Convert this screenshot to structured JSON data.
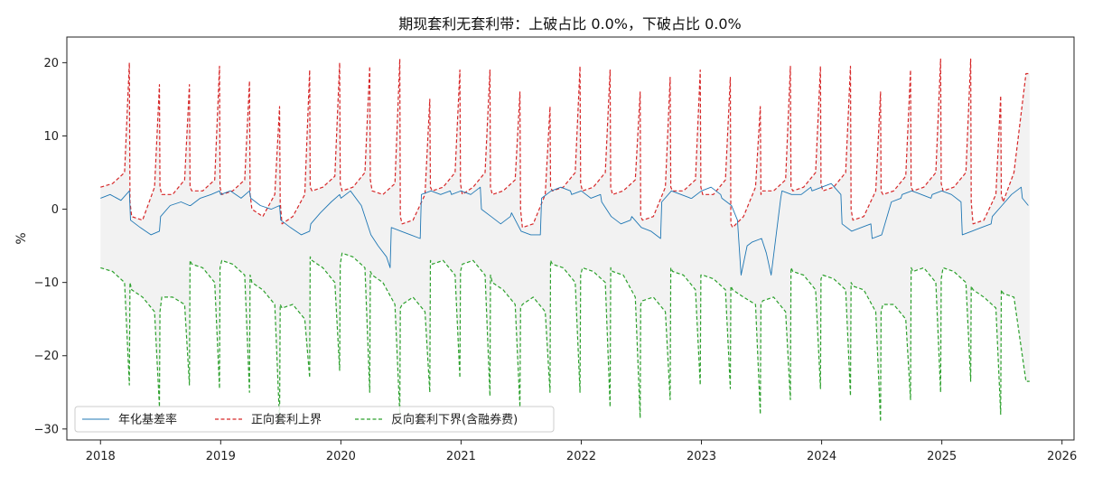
{
  "chart_data": {
    "type": "line",
    "title": "期现套利无套利带：上破占比 0.0%，下破占比 0.0%",
    "xlabel": "",
    "ylabel": "%",
    "xlim": [
      2017.72,
      2026.1
    ],
    "ylim": [
      -31.5,
      23.5
    ],
    "x_ticks": [
      2018,
      2019,
      2020,
      2021,
      2022,
      2023,
      2024,
      2025,
      2026
    ],
    "x_tick_labels": [
      "2018",
      "2019",
      "2020",
      "2021",
      "2022",
      "2023",
      "2024",
      "2025",
      "2026"
    ],
    "y_ticks": [
      -30,
      -20,
      -10,
      0,
      10,
      20
    ],
    "y_tick_labels": [
      "−30",
      "−20",
      "−10",
      "0",
      "10",
      "20"
    ],
    "grid": false,
    "legend_position": "lower-left",
    "band_fill_color": "#f2f2f2",
    "series": [
      {
        "name": "年化基差率",
        "color": "#1f77b4",
        "style": "solid",
        "x": [
          2018.0,
          2018.08,
          2018.17,
          2018.24,
          2018.25,
          2018.33,
          2018.42,
          2018.49,
          2018.5,
          2018.58,
          2018.67,
          2018.74,
          2018.75,
          2018.83,
          2018.92,
          2018.99,
          2019.0,
          2019.08,
          2019.17,
          2019.24,
          2019.25,
          2019.33,
          2019.42,
          2019.49,
          2019.5,
          2019.58,
          2019.67,
          2019.74,
          2019.75,
          2019.83,
          2019.92,
          2019.99,
          2020.0,
          2020.08,
          2020.17,
          2020.24,
          2020.25,
          2020.31,
          2020.38,
          2020.41,
          2020.42,
          2020.5,
          2020.58,
          2020.66,
          2020.67,
          2020.75,
          2020.83,
          2020.91,
          2020.92,
          2021.0,
          2021.08,
          2021.16,
          2021.17,
          2021.25,
          2021.33,
          2021.41,
          2021.42,
          2021.5,
          2021.58,
          2021.66,
          2021.67,
          2021.75,
          2021.83,
          2021.91,
          2021.92,
          2022.0,
          2022.08,
          2022.16,
          2022.17,
          2022.25,
          2022.33,
          2022.41,
          2022.42,
          2022.5,
          2022.58,
          2022.66,
          2022.67,
          2022.75,
          2022.83,
          2022.91,
          2022.92,
          2023.0,
          2023.08,
          2023.16,
          2023.17,
          2023.25,
          2023.3,
          2023.33,
          2023.38,
          2023.42,
          2023.5,
          2023.54,
          2023.58,
          2023.66,
          2023.67,
          2023.75,
          2023.83,
          2023.91,
          2023.92,
          2024.0,
          2024.08,
          2024.16,
          2024.17,
          2024.25,
          2024.33,
          2024.41,
          2024.42,
          2024.5,
          2024.58,
          2024.66,
          2024.67,
          2024.75,
          2024.83,
          2024.91,
          2024.92,
          2025.0,
          2025.08,
          2025.16,
          2025.17,
          2025.25,
          2025.33,
          2025.41,
          2025.42,
          2025.5,
          2025.58,
          2025.66,
          2025.67,
          2025.72
        ],
        "y": [
          1.5,
          2.0,
          1.2,
          2.5,
          -1.5,
          -2.5,
          -3.5,
          -3.0,
          -1.0,
          0.5,
          1.0,
          0.5,
          0.5,
          1.5,
          2.0,
          2.5,
          2.0,
          2.5,
          1.5,
          2.5,
          1.5,
          0.5,
          0.0,
          0.5,
          -1.5,
          -2.5,
          -3.5,
          -3.0,
          -2.0,
          -0.5,
          1.0,
          2.0,
          1.5,
          2.5,
          0.5,
          -3.0,
          -3.5,
          -5.0,
          -6.5,
          -8.0,
          -2.5,
          -3.0,
          -3.5,
          -4.0,
          2.0,
          2.5,
          2.0,
          2.5,
          2.0,
          2.5,
          2.0,
          3.0,
          0.0,
          -1.0,
          -2.0,
          -1.0,
          -0.5,
          -3.0,
          -3.5,
          -3.5,
          1.5,
          2.5,
          3.0,
          2.5,
          2.0,
          2.5,
          1.5,
          2.0,
          1.0,
          -1.0,
          -2.0,
          -1.5,
          -1.0,
          -2.5,
          -3.0,
          -4.0,
          1.0,
          2.5,
          2.0,
          1.5,
          1.5,
          2.5,
          3.0,
          2.0,
          1.5,
          0.5,
          -1.5,
          -9.0,
          -5.0,
          -4.5,
          -4.0,
          -6.0,
          -9.0,
          1.5,
          2.5,
          2.0,
          2.0,
          3.0,
          2.5,
          3.0,
          3.5,
          2.0,
          -2.0,
          -3.0,
          -2.5,
          -2.0,
          -4.0,
          -3.5,
          1.0,
          1.5,
          2.0,
          2.5,
          2.0,
          1.5,
          2.0,
          2.5,
          2.0,
          1.0,
          -3.5,
          -3.0,
          -2.5,
          -2.0,
          -1.0,
          0.5,
          2.0,
          3.0,
          1.5,
          0.5
        ]
      },
      {
        "name": "正向套利上界",
        "color": "#d62728",
        "style": "dashed",
        "x": [
          2018.0,
          2018.1,
          2018.2,
          2018.24,
          2018.245,
          2018.26,
          2018.35,
          2018.45,
          2018.49,
          2018.495,
          2018.51,
          2018.6,
          2018.7,
          2018.74,
          2018.745,
          2018.76,
          2018.85,
          2018.95,
          2018.99,
          2018.995,
          2019.01,
          2019.1,
          2019.2,
          2019.24,
          2019.245,
          2019.26,
          2019.35,
          2019.45,
          2019.49,
          2019.495,
          2019.51,
          2019.6,
          2019.7,
          2019.74,
          2019.745,
          2019.76,
          2019.85,
          2019.95,
          2019.99,
          2019.995,
          2020.01,
          2020.1,
          2020.2,
          2020.24,
          2020.245,
          2020.26,
          2020.35,
          2020.45,
          2020.49,
          2020.495,
          2020.51,
          2020.6,
          2020.7,
          2020.74,
          2020.745,
          2020.76,
          2020.85,
          2020.95,
          2020.99,
          2020.995,
          2021.01,
          2021.1,
          2021.2,
          2021.24,
          2021.245,
          2021.26,
          2021.35,
          2021.45,
          2021.49,
          2021.495,
          2021.51,
          2021.6,
          2021.7,
          2021.74,
          2021.745,
          2021.76,
          2021.85,
          2021.95,
          2021.99,
          2021.995,
          2022.01,
          2022.1,
          2022.2,
          2022.24,
          2022.245,
          2022.26,
          2022.35,
          2022.45,
          2022.49,
          2022.495,
          2022.51,
          2022.6,
          2022.7,
          2022.74,
          2022.745,
          2022.76,
          2022.85,
          2022.95,
          2022.99,
          2022.995,
          2023.01,
          2023.1,
          2023.2,
          2023.24,
          2023.245,
          2023.26,
          2023.35,
          2023.45,
          2023.49,
          2023.495,
          2023.51,
          2023.6,
          2023.7,
          2023.74,
          2023.745,
          2023.76,
          2023.85,
          2023.95,
          2023.99,
          2023.995,
          2024.01,
          2024.1,
          2024.2,
          2024.24,
          2024.245,
          2024.26,
          2024.35,
          2024.45,
          2024.49,
          2024.495,
          2024.51,
          2024.6,
          2024.7,
          2024.74,
          2024.745,
          2024.76,
          2024.85,
          2024.95,
          2024.99,
          2024.995,
          2025.01,
          2025.1,
          2025.2,
          2025.24,
          2025.245,
          2025.26,
          2025.35,
          2025.45,
          2025.49,
          2025.495,
          2025.51,
          2025.6,
          2025.7,
          2025.73
        ],
        "y": [
          3.0,
          3.5,
          5.0,
          20.0,
          1.0,
          -1.0,
          -1.5,
          3.0,
          17.0,
          3.0,
          2.0,
          2.0,
          4.0,
          17.0,
          3.0,
          2.5,
          2.5,
          4.0,
          19.5,
          3.0,
          2.0,
          2.5,
          4.0,
          17.5,
          2.0,
          0.0,
          -1.0,
          2.0,
          14.0,
          1.0,
          -2.0,
          -1.0,
          2.0,
          19.0,
          3.0,
          2.5,
          3.0,
          4.5,
          20.0,
          3.5,
          2.5,
          3.0,
          5.0,
          19.5,
          4.0,
          2.5,
          2.0,
          3.5,
          20.5,
          -1.0,
          -2.0,
          -1.5,
          2.0,
          15.0,
          3.0,
          2.5,
          3.0,
          5.0,
          19.0,
          3.5,
          2.0,
          3.0,
          5.0,
          19.0,
          3.0,
          2.0,
          2.5,
          4.0,
          16.0,
          0.0,
          -2.5,
          -2.0,
          2.0,
          14.0,
          3.0,
          2.5,
          3.0,
          5.0,
          19.5,
          3.5,
          2.5,
          3.0,
          5.0,
          19.0,
          3.0,
          2.0,
          2.5,
          4.0,
          16.0,
          -1.0,
          -1.5,
          -1.0,
          3.0,
          18.0,
          3.0,
          2.5,
          2.5,
          4.0,
          19.0,
          3.0,
          2.0,
          2.0,
          4.0,
          18.0,
          -2.0,
          -2.5,
          -1.0,
          3.0,
          14.0,
          2.0,
          2.5,
          2.5,
          4.0,
          19.5,
          3.0,
          2.5,
          3.0,
          5.0,
          19.5,
          3.5,
          2.5,
          3.0,
          5.0,
          19.5,
          0.0,
          -1.5,
          -1.0,
          2.5,
          16.0,
          2.5,
          2.0,
          2.5,
          4.5,
          19.0,
          3.0,
          2.5,
          3.0,
          5.0,
          20.5,
          3.5,
          2.5,
          3.0,
          5.0,
          20.5,
          1.0,
          -2.0,
          -1.5,
          2.0,
          15.5,
          2.0,
          1.0,
          5.0,
          18.5,
          18.5
        ]
      },
      {
        "name": "反向套利下界(含融券费)",
        "color": "#2ca02c",
        "style": "dashed",
        "x": [
          2018.0,
          2018.1,
          2018.2,
          2018.24,
          2018.245,
          2018.26,
          2018.35,
          2018.45,
          2018.49,
          2018.495,
          2018.51,
          2018.6,
          2018.7,
          2018.74,
          2018.745,
          2018.76,
          2018.85,
          2018.95,
          2018.99,
          2018.995,
          2019.01,
          2019.1,
          2019.2,
          2019.24,
          2019.245,
          2019.26,
          2019.35,
          2019.45,
          2019.49,
          2019.495,
          2019.51,
          2019.6,
          2019.7,
          2019.74,
          2019.745,
          2019.76,
          2019.85,
          2019.95,
          2019.99,
          2019.995,
          2020.01,
          2020.1,
          2020.2,
          2020.24,
          2020.245,
          2020.26,
          2020.35,
          2020.45,
          2020.49,
          2020.495,
          2020.51,
          2020.6,
          2020.7,
          2020.74,
          2020.745,
          2020.76,
          2020.85,
          2020.95,
          2020.99,
          2020.995,
          2021.01,
          2021.1,
          2021.2,
          2021.24,
          2021.245,
          2021.26,
          2021.35,
          2021.45,
          2021.49,
          2021.495,
          2021.51,
          2021.6,
          2021.7,
          2021.74,
          2021.745,
          2021.76,
          2021.85,
          2021.95,
          2021.99,
          2021.995,
          2022.01,
          2022.1,
          2022.2,
          2022.24,
          2022.245,
          2022.26,
          2022.35,
          2022.45,
          2022.49,
          2022.495,
          2022.51,
          2022.6,
          2022.7,
          2022.74,
          2022.745,
          2022.76,
          2022.85,
          2022.95,
          2022.99,
          2022.995,
          2023.01,
          2023.1,
          2023.2,
          2023.24,
          2023.245,
          2023.26,
          2023.35,
          2023.45,
          2023.49,
          2023.495,
          2023.51,
          2023.6,
          2023.7,
          2023.74,
          2023.745,
          2023.76,
          2023.85,
          2023.95,
          2023.99,
          2023.995,
          2024.01,
          2024.1,
          2024.2,
          2024.24,
          2024.245,
          2024.26,
          2024.35,
          2024.45,
          2024.49,
          2024.495,
          2024.51,
          2024.6,
          2024.7,
          2024.74,
          2024.745,
          2024.76,
          2024.85,
          2024.95,
          2024.99,
          2024.995,
          2025.01,
          2025.1,
          2025.2,
          2025.24,
          2025.245,
          2025.26,
          2025.35,
          2025.45,
          2025.49,
          2025.495,
          2025.51,
          2025.6,
          2025.7,
          2025.73
        ],
        "y": [
          -8.0,
          -8.5,
          -10.0,
          -24.0,
          -10.0,
          -11.0,
          -12.0,
          -14.0,
          -27.0,
          -14.0,
          -12.0,
          -12.0,
          -13.0,
          -24.0,
          -7.0,
          -7.5,
          -8.0,
          -10.0,
          -24.5,
          -8.0,
          -7.0,
          -7.5,
          -9.0,
          -25.0,
          -9.0,
          -10.0,
          -11.0,
          -13.0,
          -29.0,
          -13.0,
          -13.5,
          -13.0,
          -15.0,
          -23.0,
          -6.5,
          -7.0,
          -8.0,
          -10.0,
          -22.0,
          -7.5,
          -6.0,
          -6.5,
          -8.0,
          -25.0,
          -8.5,
          -9.0,
          -10.0,
          -13.0,
          -28.0,
          -13.5,
          -13.0,
          -12.0,
          -14.0,
          -25.0,
          -7.0,
          -7.5,
          -7.0,
          -9.0,
          -23.0,
          -8.5,
          -7.5,
          -7.0,
          -9.0,
          -25.5,
          -9.0,
          -10.0,
          -11.0,
          -13.0,
          -27.0,
          -13.5,
          -13.0,
          -12.0,
          -14.0,
          -25.0,
          -7.0,
          -7.5,
          -8.0,
          -10.0,
          -25.0,
          -9.0,
          -8.0,
          -8.5,
          -10.0,
          -27.0,
          -8.0,
          -8.5,
          -9.0,
          -12.0,
          -28.5,
          -13.0,
          -12.5,
          -12.0,
          -14.0,
          -26.0,
          -8.0,
          -8.5,
          -9.0,
          -11.0,
          -24.0,
          -9.0,
          -9.0,
          -9.5,
          -11.0,
          -24.5,
          -10.5,
          -11.0,
          -12.0,
          -13.0,
          -28.0,
          -13.0,
          -12.5,
          -12.0,
          -14.0,
          -26.0,
          -8.0,
          -8.5,
          -9.0,
          -11.0,
          -24.5,
          -9.5,
          -9.0,
          -9.5,
          -11.0,
          -25.5,
          -10.0,
          -10.5,
          -11.0,
          -14.0,
          -29.0,
          -14.0,
          -13.0,
          -13.0,
          -15.0,
          -26.0,
          -8.0,
          -8.5,
          -8.0,
          -10.0,
          -25.0,
          -9.5,
          -8.0,
          -8.5,
          -10.0,
          -23.5,
          -10.5,
          -11.0,
          -12.0,
          -13.5,
          -28.0,
          -11.0,
          -11.5,
          -12.0,
          -23.5,
          -23.5
        ]
      }
    ]
  }
}
